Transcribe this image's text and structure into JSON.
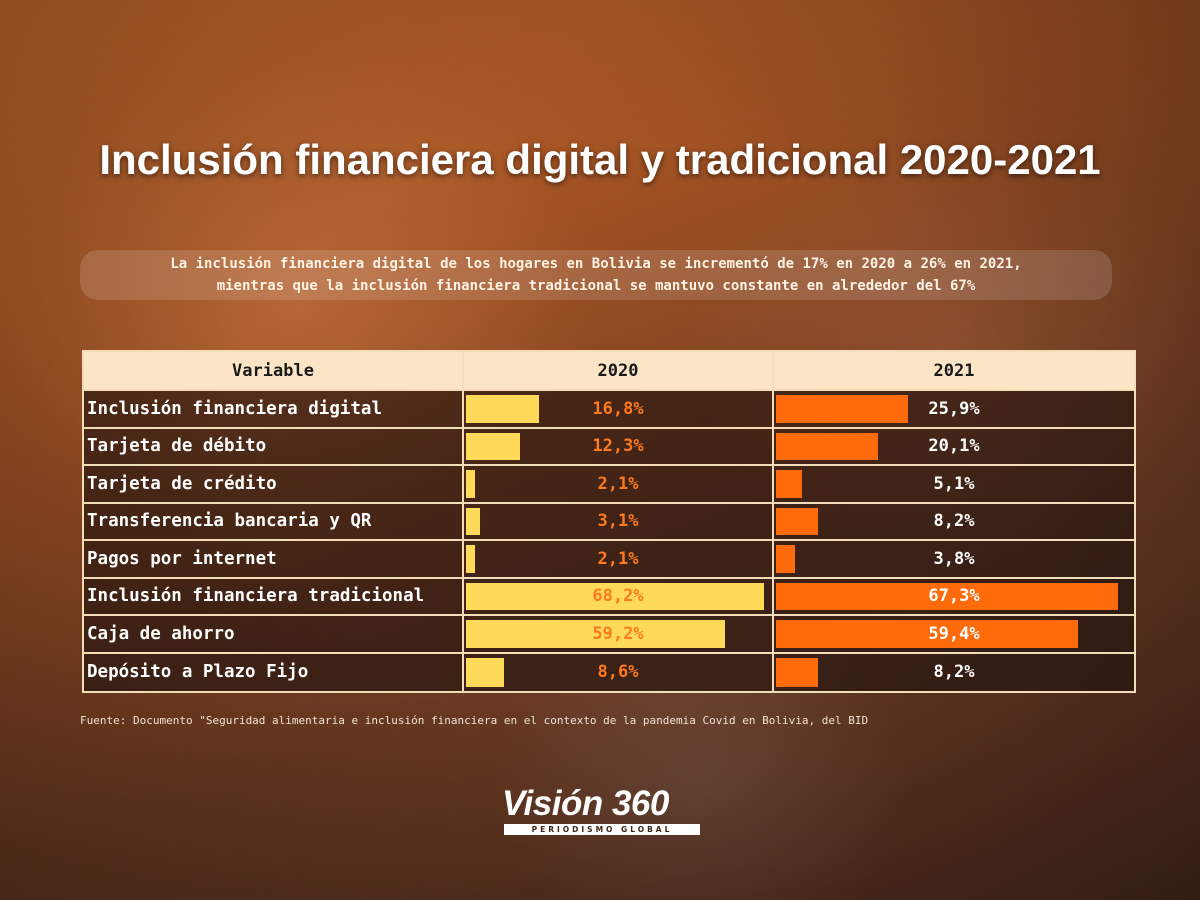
{
  "title": "Inclusión financiera digital y tradicional 2020-2021",
  "subtitle": {
    "line1": "La inclusión financiera digital de los hogares en Bolivia se incrementó de 17% en 2020 a 26% en 2021,",
    "line2": "mientras que la inclusión financiera tradicional se mantuvo constante en alrededor del 67%"
  },
  "source": "Fuente: Documento \"Seguridad alimentaria e inclusión financiera en el contexto de la pandemia Covid en Bolivia, del BID",
  "logo": {
    "name": "Visión 360",
    "tagline": "PERIODISMO GLOBAL"
  },
  "colors": {
    "bar_2020": "#ffd95a",
    "bar_2021": "#ff6a0a",
    "value_2020": "#ff7a1c",
    "header_bg": "#fbe5c6"
  },
  "chart_data": {
    "type": "table",
    "columns": [
      "Variable",
      "2020",
      "2021"
    ],
    "bar_max": 70,
    "rows": [
      {
        "variable": "Inclusión financiera digital",
        "v2020": 16.8,
        "v2021": 25.9,
        "label2020": "16,8%",
        "label2021": "25,9%"
      },
      {
        "variable": "Tarjeta de débito",
        "v2020": 12.3,
        "v2021": 20.1,
        "label2020": "12,3%",
        "label2021": "20,1%"
      },
      {
        "variable": "Tarjeta de crédito",
        "v2020": 2.1,
        "v2021": 5.1,
        "label2020": "2,1%",
        "label2021": "5,1%"
      },
      {
        "variable": "Transferencia bancaria y QR",
        "v2020": 3.1,
        "v2021": 8.2,
        "label2020": "3,1%",
        "label2021": "8,2%"
      },
      {
        "variable": "Pagos por internet",
        "v2020": 2.1,
        "v2021": 3.8,
        "label2020": "2,1%",
        "label2021": "3,8%"
      },
      {
        "variable": "Inclusión financiera tradicional",
        "v2020": 68.2,
        "v2021": 67.3,
        "label2020": "68,2%",
        "label2021": "67,3%"
      },
      {
        "variable": "Caja de ahorro",
        "v2020": 59.2,
        "v2021": 59.4,
        "label2020": "59,2%",
        "label2021": "59,4%"
      },
      {
        "variable": "Depósito a Plazo Fijo",
        "v2020": 8.6,
        "v2021": 8.2,
        "label2020": "8,6%",
        "label2021": "8,2%"
      }
    ]
  }
}
